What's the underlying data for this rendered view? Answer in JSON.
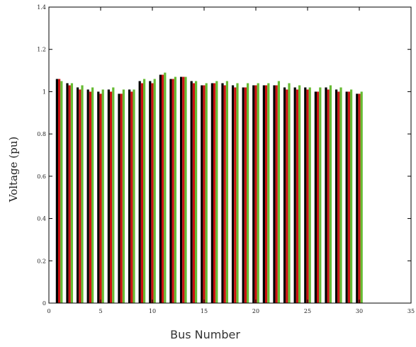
{
  "chart_data": {
    "type": "bar",
    "title": "",
    "xlabel": "Bus Number",
    "ylabel": "Voltage (pu)",
    "xlim": [
      0,
      35
    ],
    "ylim": [
      0,
      1.4
    ],
    "xticks": [
      "0",
      "5",
      "10",
      "15",
      "20",
      "25",
      "30",
      "35"
    ],
    "yticks": [
      "0",
      "0.2",
      "0.4",
      "0.6",
      "0.8",
      "1",
      "1.2",
      "1.4"
    ],
    "grid": false,
    "x": [
      1,
      2,
      3,
      4,
      5,
      6,
      7,
      8,
      9,
      10,
      11,
      12,
      13,
      14,
      15,
      16,
      17,
      18,
      19,
      20,
      21,
      22,
      23,
      24,
      25,
      26,
      27,
      28,
      29,
      30
    ],
    "series": [
      {
        "color": "#000000",
        "values": [
          1.06,
          1.04,
          1.02,
          1.01,
          1.0,
          1.01,
          0.99,
          1.01,
          1.05,
          1.05,
          1.08,
          1.06,
          1.07,
          1.05,
          1.03,
          1.04,
          1.04,
          1.03,
          1.02,
          1.03,
          1.03,
          1.03,
          1.02,
          1.02,
          1.02,
          1.0,
          1.02,
          1.01,
          1.0,
          0.99
        ]
      },
      {
        "color": "#cc1111",
        "values": [
          1.06,
          1.03,
          1.01,
          1.0,
          0.99,
          1.0,
          0.99,
          1.0,
          1.04,
          1.04,
          1.08,
          1.06,
          1.07,
          1.04,
          1.03,
          1.04,
          1.03,
          1.02,
          1.02,
          1.03,
          1.03,
          1.03,
          1.01,
          1.01,
          1.01,
          1.0,
          1.01,
          1.0,
          1.0,
          0.99
        ]
      },
      {
        "color": "#66bb33",
        "values": [
          1.05,
          1.04,
          1.03,
          1.02,
          1.01,
          1.02,
          1.01,
          1.01,
          1.06,
          1.06,
          1.09,
          1.07,
          1.07,
          1.05,
          1.04,
          1.05,
          1.05,
          1.04,
          1.04,
          1.04,
          1.04,
          1.05,
          1.04,
          1.03,
          1.02,
          1.02,
          1.03,
          1.02,
          1.01,
          1.0
        ]
      }
    ]
  }
}
